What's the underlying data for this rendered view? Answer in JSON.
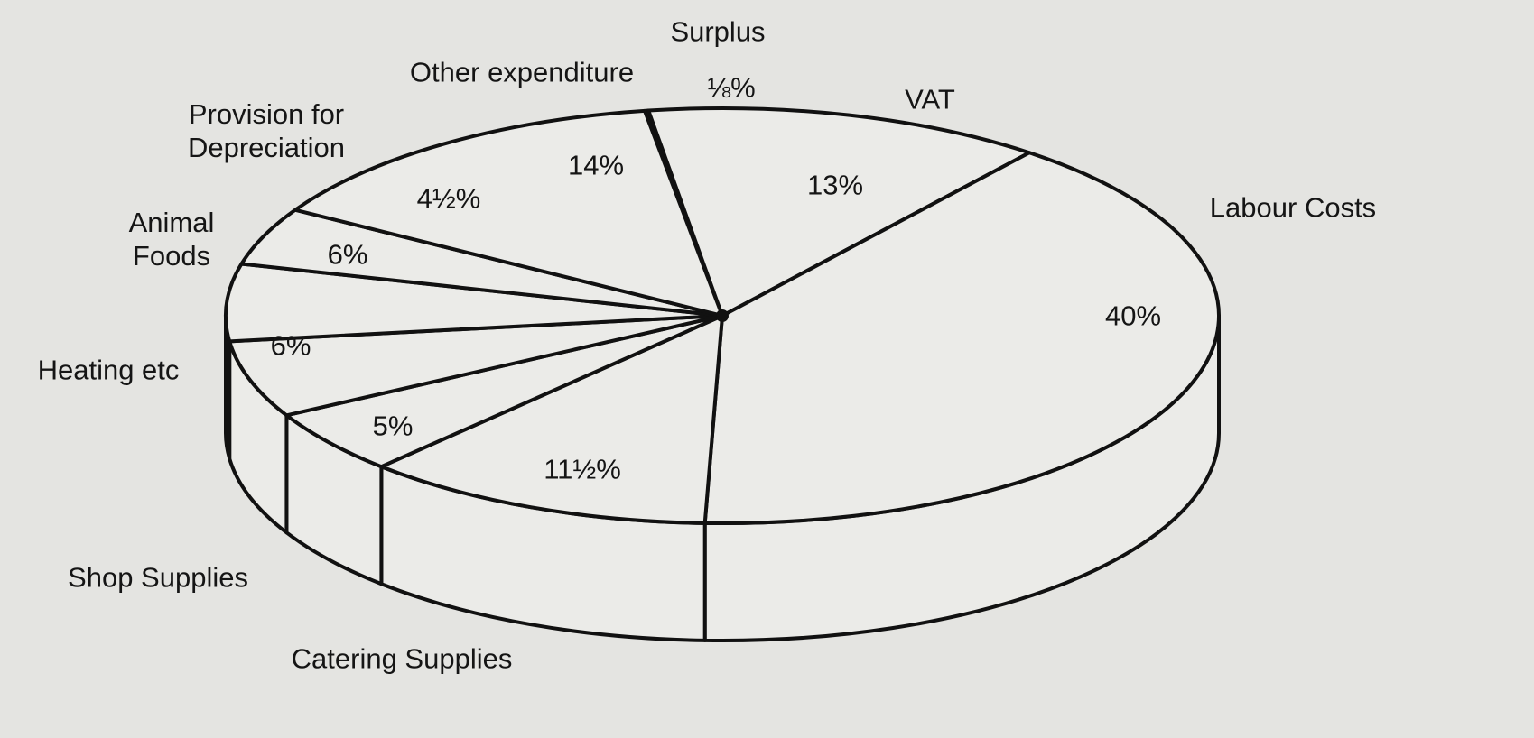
{
  "chart_data": {
    "type": "pie",
    "categories": [
      "Surplus",
      "VAT",
      "Labour Costs",
      "Catering Supplies",
      "Shop Supplies",
      "Heating etc",
      "Animal Foods",
      "Provision for Depreciation",
      "Other expenditure"
    ],
    "values": [
      0.125,
      13,
      40,
      11.5,
      5,
      6,
      6,
      4.5,
      14
    ],
    "value_labels": [
      "⅛%",
      "13%",
      "40%",
      "11½%",
      "5%",
      "6%",
      "6%",
      "4½%",
      "14%"
    ],
    "color": "#ebebe8"
  }
}
